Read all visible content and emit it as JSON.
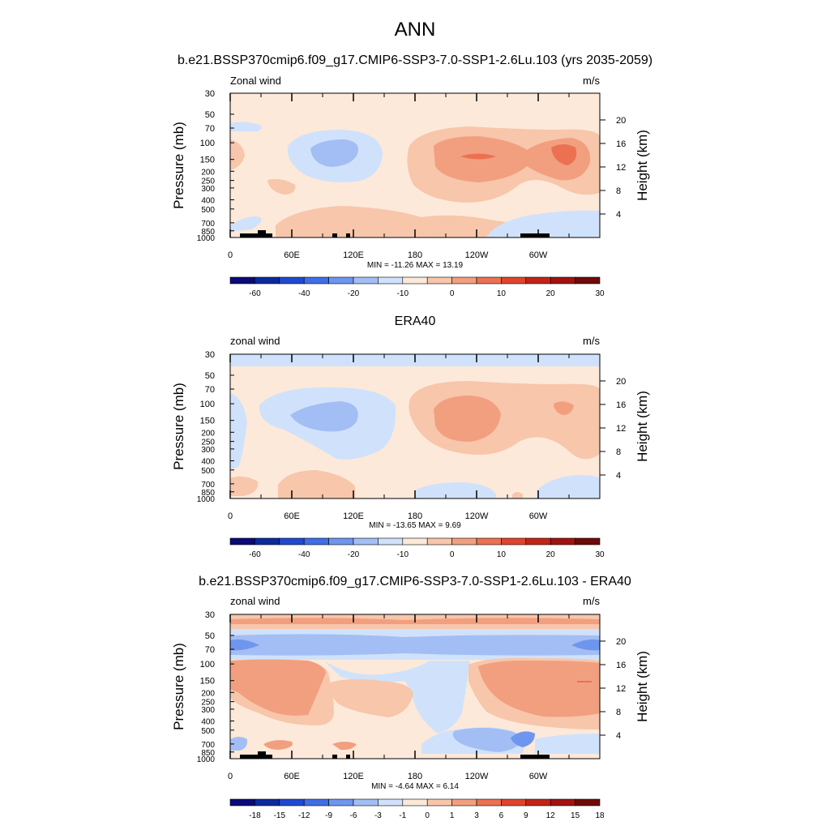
{
  "figure": {
    "main_title": "ANN"
  },
  "palettes": {
    "abs_colors": [
      "#0a0a78",
      "#0c2a9e",
      "#1f4ad0",
      "#3f6ee6",
      "#6f96ee",
      "#a3bef4",
      "#d0e2fb",
      "#fde9d9",
      "#f7c6ab",
      "#f29f7f",
      "#ec7152",
      "#e0442c",
      "#c32418",
      "#a0130f",
      "#6e0a08"
    ],
    "abs_labels": [
      "-60",
      "-40",
      "-20",
      "-10",
      "0",
      "10",
      "20",
      "30"
    ],
    "diff_colors": [
      "#0a0a78",
      "#0c2a9e",
      "#1f4ad0",
      "#3f6ee6",
      "#6f96ee",
      "#a3bef4",
      "#d0e2fb",
      "#fde9d9",
      "#f7c6ab",
      "#f29f7f",
      "#ec7152",
      "#e0442c",
      "#c32418",
      "#a0130f",
      "#6e0a08"
    ],
    "diff_labels": [
      "-18",
      "-15",
      "-12",
      "-9",
      "-6",
      "-3",
      "-1",
      "0",
      "1",
      "3",
      "6",
      "9",
      "12",
      "15",
      "18"
    ]
  },
  "axes": {
    "pressure_ticks": [
      "30",
      "50",
      "70",
      "100",
      "150",
      "200",
      "250",
      "300",
      "400",
      "500",
      "700",
      "850",
      "1000"
    ],
    "pressure_values": [
      30,
      50,
      70,
      100,
      150,
      200,
      250,
      300,
      400,
      500,
      700,
      850,
      1000
    ],
    "height_ticks": [
      "20",
      "16",
      "12",
      "8",
      "4"
    ],
    "height_values_km": [
      20,
      16,
      12,
      8,
      4
    ],
    "lon_ticks": [
      "0",
      "60E",
      "120E",
      "180",
      "120W",
      "60W"
    ],
    "lon_values": [
      0,
      60,
      120,
      180,
      240,
      300
    ],
    "left_label": "Pressure (mb)",
    "right_label": "Height (km)"
  },
  "panels": [
    {
      "title": "b.e21.BSSP370cmip6.f09_g17.CMIP6-SSP3-7.0-SSP1-2.6Lu.103 (yrs 2035-2059)",
      "left_string": "Zonal wind",
      "right_string": "m/s",
      "stats": "MIN = -11.26  MAX =  13.19",
      "palette": "abs"
    },
    {
      "title": "ERA40",
      "left_string": "zonal wind",
      "right_string": "m/s",
      "stats": "MIN = -13.65  MAX =   9.69",
      "palette": "abs"
    },
    {
      "title": "b.e21.BSSP370cmip6.f09_g17.CMIP6-SSP3-7.0-SSP1-2.6Lu.103 - ERA40",
      "left_string": "zonal wind",
      "right_string": "m/s",
      "stats": "MIN =  -4.64  MAX =  6.14",
      "palette": "diff"
    }
  ],
  "chart_data": [
    {
      "type": "heatmap",
      "title": "b.e21.BSSP370cmip6.f09_g17.CMIP6-SSP3-7.0-SSP1-2.6Lu.103 (yrs 2035-2059)",
      "xlabel": "",
      "ylabel": "Pressure (mb)",
      "units": "m/s",
      "min": -11.26,
      "max": 13.19,
      "xlim": [
        0,
        360
      ],
      "ylim_pressure": [
        1000,
        30
      ]
    },
    {
      "type": "heatmap",
      "title": "ERA40",
      "xlabel": "",
      "ylabel": "Pressure (mb)",
      "units": "m/s",
      "min": -13.65,
      "max": 9.69,
      "xlim": [
        0,
        360
      ],
      "ylim_pressure": [
        1000,
        30
      ]
    },
    {
      "type": "heatmap",
      "title": "b.e21.BSSP370cmip6.f09_g17.CMIP6-SSP3-7.0-SSP1-2.6Lu.103 - ERA40",
      "xlabel": "",
      "ylabel": "Pressure (mb)",
      "units": "m/s",
      "min": -4.64,
      "max": 6.14,
      "xlim": [
        0,
        360
      ],
      "ylim_pressure": [
        1000,
        30
      ]
    }
  ]
}
